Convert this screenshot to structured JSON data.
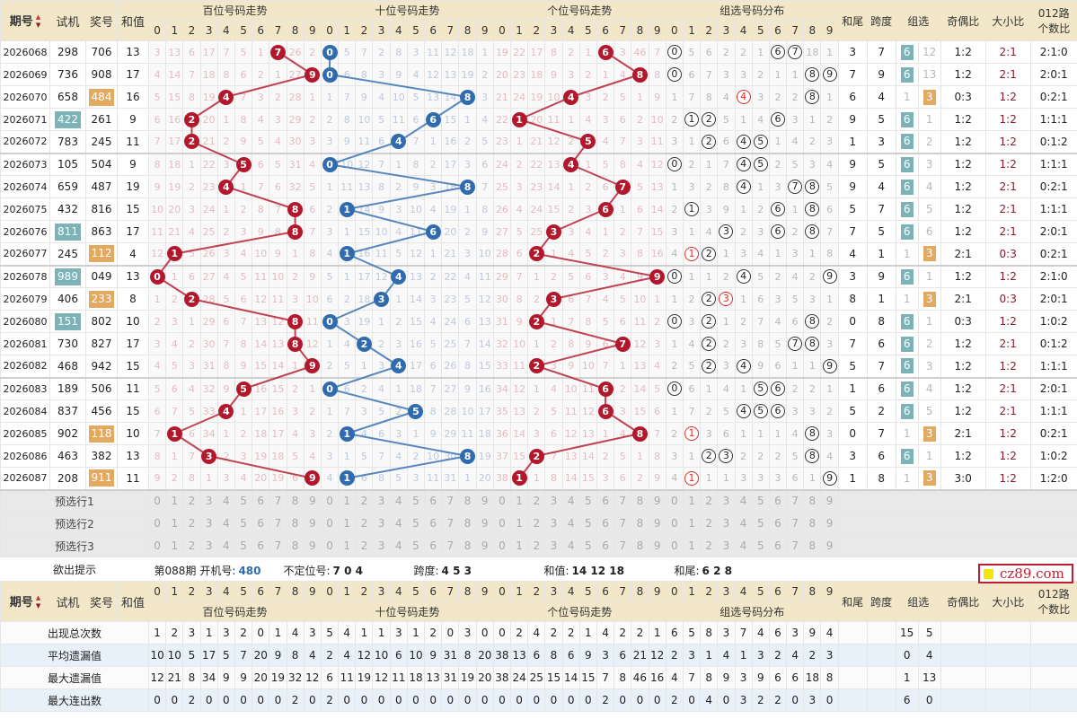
{
  "header": {
    "period": "期号",
    "test": "试机",
    "number": "奖号",
    "sum": "和值",
    "panels": [
      "百位号码走势",
      "十位号码走势",
      "个位号码走势",
      "组选号码分布"
    ],
    "tail": "和尾",
    "span": "跨度",
    "group": "组选",
    "oe": "奇偶比",
    "bs": "大小比",
    "route": "012路",
    "ratio": "个数比",
    "sort_icon": "sort-arrows-icon"
  },
  "digits": [
    "0",
    "1",
    "2",
    "3",
    "4",
    "5",
    "6",
    "7",
    "8",
    "9"
  ],
  "rows": [
    {
      "period": "2026068",
      "test": "298",
      "number": "706",
      "sum": "13",
      "tail": "3",
      "span": "7",
      "oe": "1:2",
      "bs": "2:1",
      "r012": "2:1:0"
    },
    {
      "period": "2026069",
      "test": "736",
      "number": "908",
      "sum": "17",
      "tail": "7",
      "span": "9",
      "oe": "1:2",
      "bs": "2:1",
      "r012": "2:0:1"
    },
    {
      "period": "2026070",
      "test": "658",
      "number": "484",
      "sum": "16",
      "tail": "6",
      "span": "4",
      "oe": "0:3",
      "bs": "1:2",
      "r012": "0:2:1"
    },
    {
      "period": "2026071",
      "test": "422",
      "number": "261",
      "sum": "9",
      "tail": "9",
      "span": "5",
      "oe": "1:2",
      "bs": "1:2",
      "r012": "1:1:1"
    },
    {
      "period": "2026072",
      "test": "783",
      "number": "245",
      "sum": "11",
      "tail": "1",
      "span": "3",
      "oe": "1:2",
      "bs": "1:2",
      "r012": "0:1:2"
    },
    {
      "period": "2026073",
      "test": "105",
      "number": "504",
      "sum": "9",
      "tail": "9",
      "span": "5",
      "oe": "1:2",
      "bs": "1:2",
      "r012": "1:1:1"
    },
    {
      "period": "2026074",
      "test": "659",
      "number": "487",
      "sum": "19",
      "tail": "9",
      "span": "4",
      "oe": "1:2",
      "bs": "2:1",
      "r012": "0:2:1"
    },
    {
      "period": "2026075",
      "test": "432",
      "number": "816",
      "sum": "15",
      "tail": "5",
      "span": "7",
      "oe": "1:2",
      "bs": "2:1",
      "r012": "1:1:1"
    },
    {
      "period": "2026076",
      "test": "811",
      "number": "863",
      "sum": "17",
      "tail": "7",
      "span": "5",
      "oe": "1:2",
      "bs": "2:1",
      "r012": "2:0:1"
    },
    {
      "period": "2026077",
      "test": "245",
      "number": "112",
      "sum": "4",
      "tail": "4",
      "span": "1",
      "oe": "2:1",
      "bs": "0:3",
      "r012": "0:2:1"
    },
    {
      "period": "2026078",
      "test": "989",
      "number": "049",
      "sum": "13",
      "tail": "3",
      "span": "9",
      "oe": "1:2",
      "bs": "1:2",
      "r012": "2:1:0"
    },
    {
      "period": "2026079",
      "test": "406",
      "number": "233",
      "sum": "8",
      "tail": "8",
      "span": "1",
      "oe": "2:1",
      "bs": "0:3",
      "r012": "2:0:1"
    },
    {
      "period": "2026080",
      "test": "151",
      "number": "802",
      "sum": "10",
      "tail": "0",
      "span": "8",
      "oe": "0:3",
      "bs": "1:2",
      "r012": "1:0:2"
    },
    {
      "period": "2026081",
      "test": "730",
      "number": "827",
      "sum": "17",
      "tail": "7",
      "span": "6",
      "oe": "1:2",
      "bs": "2:1",
      "r012": "0:1:2"
    },
    {
      "period": "2026082",
      "test": "468",
      "number": "942",
      "sum": "15",
      "tail": "5",
      "span": "7",
      "oe": "1:2",
      "bs": "1:2",
      "r012": "1:1:1"
    },
    {
      "period": "2026083",
      "test": "189",
      "number": "506",
      "sum": "11",
      "tail": "1",
      "span": "6",
      "oe": "1:2",
      "bs": "2:1",
      "r012": "2:0:1"
    },
    {
      "period": "2026084",
      "test": "837",
      "number": "456",
      "sum": "15",
      "tail": "5",
      "span": "2",
      "oe": "1:2",
      "bs": "2:1",
      "r012": "1:1:1"
    },
    {
      "period": "2026085",
      "test": "902",
      "number": "118",
      "sum": "10",
      "tail": "0",
      "span": "7",
      "oe": "2:1",
      "bs": "1:2",
      "r012": "0:2:1"
    },
    {
      "period": "2026086",
      "test": "463",
      "number": "382",
      "sum": "13",
      "tail": "3",
      "span": "6",
      "oe": "1:2",
      "bs": "1:2",
      "r012": "1:0:2"
    },
    {
      "period": "2026087",
      "test": "208",
      "number": "911",
      "sum": "11",
      "tail": "1",
      "span": "8",
      "oe": "3:0",
      "bs": "1:2",
      "r012": "1:2:0"
    }
  ],
  "first_row_omission": {
    "hundreds": [
      3,
      13,
      6,
      17,
      7,
      5,
      1,
      0,
      26,
      2
    ],
    "tens": [
      0,
      5,
      7,
      2,
      8,
      3,
      11,
      12,
      18,
      1
    ],
    "units": [
      19,
      22,
      17,
      8,
      2,
      1,
      0,
      3,
      46,
      7
    ],
    "group": [
      0,
      5,
      6,
      2,
      2,
      1,
      0,
      0,
      18,
      1
    ],
    "group_six": 0,
    "group_three": 12
  },
  "group_labels": {
    "six": "6",
    "three": "3"
  },
  "colors": {
    "hundreds_ball": "#b3172c",
    "tens_ball": "#2f6bae",
    "units_ball": "#b3172c",
    "test_repeat": "#7db3b7",
    "number_repeat": "#e3a95f",
    "header_bg": "#f3e7c9"
  },
  "preselect": [
    "预选行1",
    "预选行2",
    "预选行3"
  ],
  "hint": {
    "label": "欲出提示",
    "issue": "第088期",
    "open_label": "开机号:",
    "open_value": "480",
    "nofix_label": "不定位号:",
    "nofix_value": "7 0 4",
    "span_label": "跨度:",
    "span_value": "4 5 3",
    "sum_label": "和值:",
    "sum_value": "14 12 18",
    "tail_label": "和尾:",
    "tail_value": "6 2 8"
  },
  "stats": [
    {
      "label": "出现总次数",
      "values": [
        1,
        2,
        3,
        1,
        3,
        2,
        0,
        1,
        4,
        3,
        5,
        4,
        1,
        1,
        3,
        1,
        2,
        0,
        3,
        0,
        0,
        2,
        4,
        2,
        2,
        1,
        4,
        2,
        2,
        1,
        6,
        5,
        8,
        3,
        7,
        4,
        6,
        3,
        9,
        4
      ],
      "group": [
        15,
        5
      ]
    },
    {
      "label": "平均遗漏值",
      "values": [
        10,
        10,
        5,
        17,
        5,
        7,
        20,
        9,
        8,
        4,
        2,
        4,
        12,
        10,
        6,
        10,
        9,
        31,
        8,
        20,
        38,
        13,
        6,
        8,
        6,
        9,
        3,
        6,
        21,
        12,
        2,
        3,
        1,
        4,
        1,
        3,
        2,
        4,
        2,
        3
      ],
      "group": [
        0,
        4
      ]
    },
    {
      "label": "最大遗漏值",
      "values": [
        12,
        21,
        8,
        34,
        9,
        9,
        20,
        19,
        32,
        12,
        6,
        11,
        19,
        12,
        11,
        18,
        13,
        31,
        19,
        20,
        38,
        24,
        25,
        15,
        14,
        15,
        7,
        8,
        46,
        16,
        4,
        7,
        8,
        9,
        3,
        9,
        6,
        6,
        18,
        8
      ],
      "group": [
        1,
        13
      ]
    },
    {
      "label": "最大连出数",
      "values": [
        0,
        0,
        2,
        0,
        0,
        0,
        0,
        0,
        2,
        0,
        2,
        0,
        0,
        0,
        0,
        0,
        0,
        0,
        0,
        0,
        0,
        0,
        0,
        0,
        0,
        0,
        2,
        0,
        0,
        0,
        2,
        0,
        4,
        0,
        3,
        2,
        2,
        0,
        3,
        0
      ],
      "group": [
        6,
        0
      ]
    }
  ],
  "watermark": "cz89.com"
}
